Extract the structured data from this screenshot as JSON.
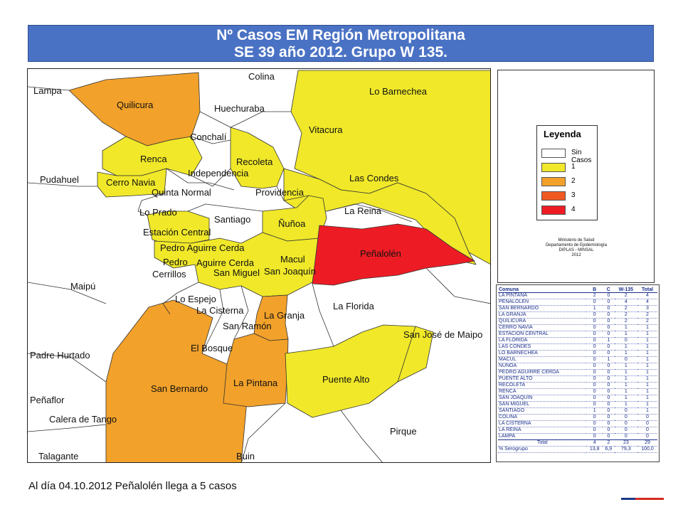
{
  "title": {
    "line1": "Nº Casos EM Región Metropolitana",
    "line2": "SE 39 año 2012. Grupo W 135."
  },
  "colors": {
    "sin_casos": "#ffffff",
    "c1": "#f0e829",
    "c2": "#f2a12a",
    "c3": "#f05a22",
    "c4": "#ed1c24",
    "border": "#222222"
  },
  "comunas": {
    "colina": "Colina",
    "lampa": "Lampa",
    "quilicura": "Quilicura",
    "lo_barnechea": "Lo Barnechea",
    "huechuraba": "Huechuraba",
    "conchali": "Conchalí",
    "vitacura": "Vitacura",
    "renca": "Renca",
    "recoleta": "Recoleta",
    "independencia": "Independencia",
    "las_condes": "Las Condes",
    "pudahuel": "Pudahuel",
    "cerro_navia": "Cerro Navia",
    "quinta_normal": "Quinta Normal",
    "providencia": "Providencia",
    "lo_prado": "Lo Prado",
    "santiago": "Santiago",
    "la_reina": "La Reina",
    "nunoa": "Ñuñoa",
    "estacion_central": "Estación Central",
    "penalolen": "Peñalolén",
    "pedro_aguirre_cerda_top": "Pedro Aguirre Cerda",
    "macul": "Macul",
    "pedro": "Pedro",
    "aguirre_cerda": "Aguirre Cerda",
    "cerrillos": "Cerrillos",
    "san_miguel": "San Miguel",
    "san_joaquin": "San Joaquín",
    "maipu": "Maipú",
    "lo_espejo": "Lo Espejo",
    "la_cisterna": "La Cisterna",
    "la_granja": "La Granja",
    "la_florida": "La Florida",
    "san_ramon": "San Ramón",
    "san_jose_de_maipo": "San José de Maipo",
    "el_bosque": "El Bosque",
    "padre_hurtado": "Padre Hurtado",
    "puente_alto": "Puente Alto",
    "la_pintana": "La Pintana",
    "san_bernardo": "San Bernardo",
    "penaflor": "Peñaflor",
    "calera_de_tango": "Calera de Tango",
    "pirque": "Pirque",
    "talagante": "Talagante",
    "buin": "Buin"
  },
  "legend": {
    "title": "Leyenda",
    "items": [
      {
        "label": "Sin Casos",
        "color": "#ffffff"
      },
      {
        "label": "1",
        "color": "#f0e829"
      },
      {
        "label": "2",
        "color": "#f2a12a"
      },
      {
        "label": "3",
        "color": "#f05a22"
      },
      {
        "label": "4",
        "color": "#ed1c24"
      }
    ]
  },
  "credits": {
    "line1": "Ministerio de Salud",
    "line2": "Departamento de Epidemiología",
    "line3": "DIPLAS - MINSAL",
    "line4": "2012"
  },
  "table": {
    "headers": [
      "Comuna",
      "B",
      "C",
      "W-135",
      "Total"
    ],
    "rows": [
      [
        "LA PINTANA",
        "2",
        "0",
        "2",
        "4"
      ],
      [
        "PEÑALOLEN",
        "0",
        "0",
        "4",
        "4"
      ],
      [
        "SAN BERNARDO",
        "1",
        "0",
        "2",
        "3"
      ],
      [
        "LA GRANJA",
        "0",
        "0",
        "2",
        "2"
      ],
      [
        "QUILICURA",
        "0",
        "0",
        "2",
        "2"
      ],
      [
        "CERRO NAVIA",
        "0",
        "0",
        "1",
        "1"
      ],
      [
        "ESTACION CENTRAL",
        "0",
        "0",
        "1",
        "1"
      ],
      [
        "LA FLORIDA",
        "0",
        "1",
        "0",
        "1"
      ],
      [
        "LAS CONDES",
        "0",
        "0",
        "1",
        "1"
      ],
      [
        "LO BARNECHEA",
        "0",
        "0",
        "1",
        "1"
      ],
      [
        "MACUL",
        "0",
        "1",
        "0",
        "1"
      ],
      [
        "ÑUÑOA",
        "0",
        "0",
        "1",
        "1"
      ],
      [
        "PEDRO AGUIRRE CERDA",
        "0",
        "0",
        "1",
        "1"
      ],
      [
        "PUENTE ALTO",
        "0",
        "0",
        "1",
        "1"
      ],
      [
        "RECOLETA",
        "0",
        "0",
        "1",
        "1"
      ],
      [
        "RENCA",
        "0",
        "0",
        "1",
        "1"
      ],
      [
        "SAN JOAQUIN",
        "0",
        "0",
        "1",
        "1"
      ],
      [
        "SAN MIGUEL",
        "0",
        "0",
        "1",
        "1"
      ],
      [
        "SANTIAGO",
        "1",
        "0",
        "0",
        "1"
      ],
      [
        "COLINA",
        "0",
        "0",
        "0",
        "0"
      ],
      [
        "LA CISTERNA",
        "0",
        "0",
        "0",
        "0"
      ],
      [
        "LA REINA",
        "0",
        "0",
        "0",
        "0"
      ],
      [
        "LAMPA",
        "0",
        "0",
        "0",
        "0"
      ]
    ],
    "total": [
      "Total",
      "4",
      "2",
      "23",
      "29"
    ],
    "serogrupo": [
      "% Serogrupo",
      "13,8",
      "6,9",
      "79,3",
      "100,0"
    ]
  },
  "footer": {
    "note": "Al día 04.10.2012 Peñalolén llega a 5 casos"
  }
}
